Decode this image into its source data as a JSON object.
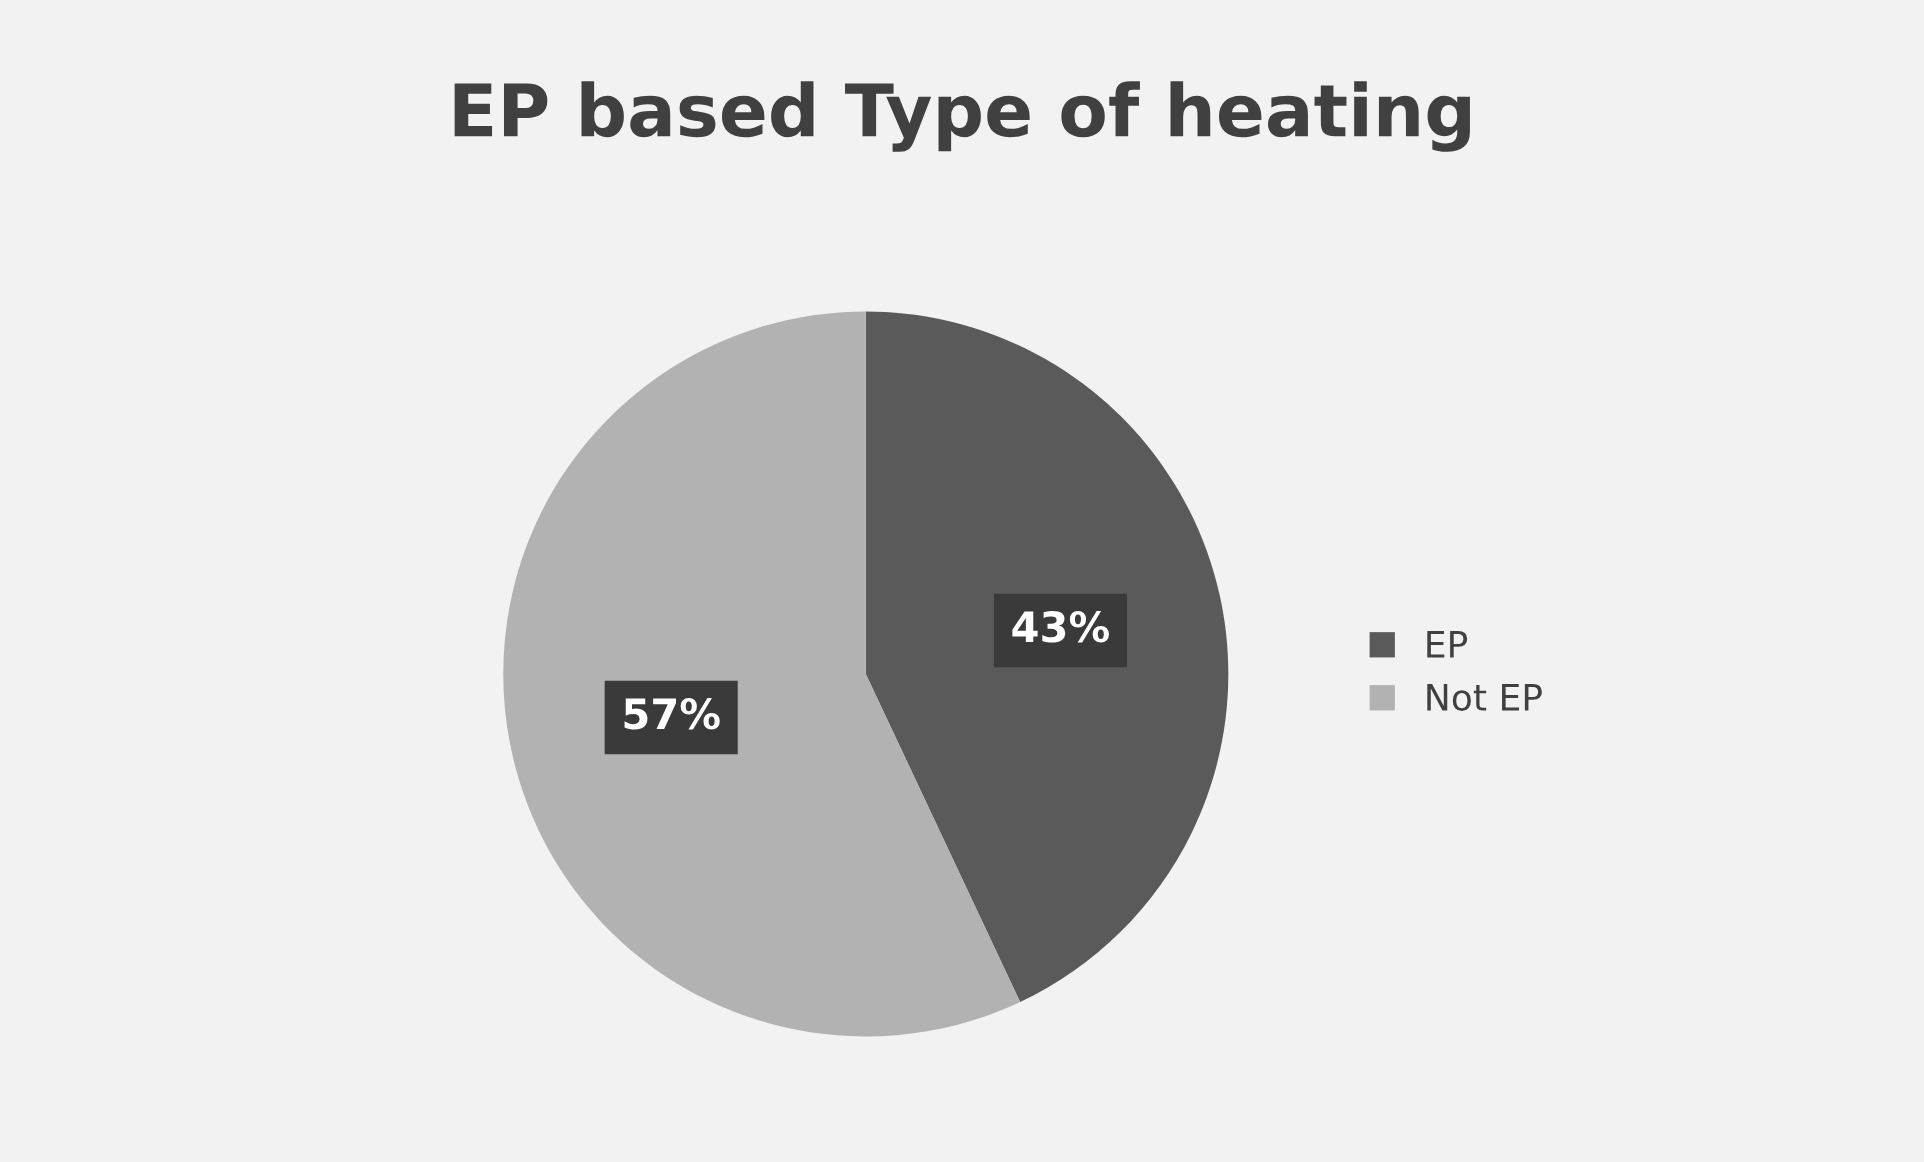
{
  "chart_data": {
    "type": "pie",
    "title": "EP based Type of heating",
    "categories": [
      "EP",
      "Not EP"
    ],
    "values": [
      43,
      57
    ],
    "colors": [
      "#5a5a5a",
      "#b2b2b2"
    ],
    "value_labels": [
      "43%",
      "57%"
    ],
    "legend": "right"
  }
}
